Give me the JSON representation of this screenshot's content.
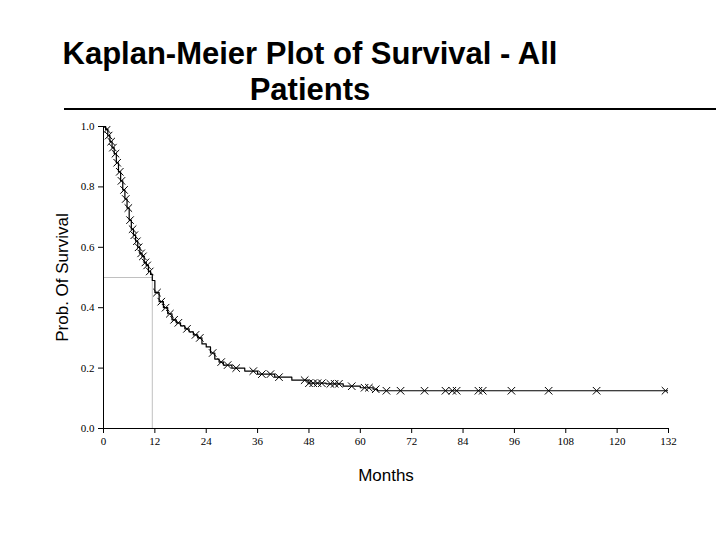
{
  "chart_data": {
    "type": "line",
    "title": "Kaplan-Meier Plot of Survival - All Patients",
    "x_label": "Months",
    "y_label": "Prob. Of Survival",
    "xlim": [
      0,
      132
    ],
    "xticks": [
      0,
      12,
      24,
      36,
      48,
      60,
      72,
      84,
      96,
      108,
      120,
      132
    ],
    "ylim": [
      0,
      1
    ],
    "yticks": [
      {
        "value": 0,
        "label": "0.0"
      },
      {
        "value": 0.2,
        "label": "0.2"
      },
      {
        "value": 0.4,
        "label": "0.4"
      },
      {
        "value": 0.6,
        "label": "0.6"
      },
      {
        "value": 0.8,
        "label": "0.8"
      },
      {
        "value": 1,
        "label": "1.0"
      }
    ],
    "grid": false,
    "series": [
      {
        "type": "line",
        "line_style": "step",
        "color": "#000000",
        "x": [
          0,
          0.5,
          1,
          1.5,
          2,
          2.5,
          3,
          3.5,
          4,
          4.5,
          5,
          5.5,
          6,
          6.5,
          7,
          7.5,
          8,
          8.5,
          9,
          9.5,
          10,
          10.5,
          11,
          11.4,
          12,
          13,
          14,
          15,
          16,
          17,
          18,
          19,
          20,
          21,
          22,
          23,
          24,
          25,
          26,
          27,
          28,
          30,
          33,
          36,
          40,
          44,
          48,
          52,
          56,
          60,
          63,
          64,
          132
        ],
        "values": [
          1,
          0.99,
          0.97,
          0.95,
          0.93,
          0.91,
          0.88,
          0.85,
          0.82,
          0.79,
          0.76,
          0.73,
          0.69,
          0.66,
          0.64,
          0.62,
          0.6,
          0.58,
          0.57,
          0.55,
          0.54,
          0.52,
          0.51,
          0.49,
          0.45,
          0.42,
          0.4,
          0.38,
          0.36,
          0.35,
          0.34,
          0.33,
          0.32,
          0.31,
          0.3,
          0.28,
          0.27,
          0.25,
          0.23,
          0.22,
          0.21,
          0.2,
          0.19,
          0.18,
          0.17,
          0.16,
          0.15,
          0.148,
          0.14,
          0.135,
          0.13,
          0.125,
          0.125
        ]
      },
      {
        "type": "scatter",
        "marker": "x",
        "color": "#000000",
        "x": [
          0.3,
          0.8,
          1.2,
          1.8,
          2.2,
          2.8,
          3.2,
          3.8,
          4.2,
          4.8,
          5.2,
          5.8,
          6.2,
          6.8,
          7.2,
          7.8,
          8.2,
          8.8,
          9.2,
          9.8,
          10.2,
          10.8,
          12.5,
          13.5,
          14.5,
          15.5,
          16.5,
          17.5,
          19.5,
          21.5,
          22.5,
          25.5,
          27.5,
          29,
          31,
          35,
          37,
          39,
          41,
          47,
          48,
          49,
          50,
          51,
          53,
          54,
          55,
          58,
          61,
          62,
          63.6,
          66.1,
          69.4,
          75,
          79.9,
          81.5,
          82.5,
          87.6,
          88.6,
          95.3,
          104,
          115.2,
          131.3
        ],
        "values": [
          1,
          0.99,
          0.97,
          0.95,
          0.93,
          0.91,
          0.88,
          0.85,
          0.82,
          0.79,
          0.76,
          0.73,
          0.69,
          0.66,
          0.64,
          0.62,
          0.6,
          0.58,
          0.57,
          0.55,
          0.54,
          0.52,
          0.45,
          0.42,
          0.4,
          0.38,
          0.36,
          0.35,
          0.33,
          0.31,
          0.3,
          0.25,
          0.22,
          0.21,
          0.2,
          0.19,
          0.18,
          0.18,
          0.17,
          0.16,
          0.15,
          0.15,
          0.15,
          0.15,
          0.148,
          0.148,
          0.148,
          0.14,
          0.135,
          0.135,
          0.13,
          0.125,
          0.125,
          0.125,
          0.125,
          0.125,
          0.125,
          0.125,
          0.125,
          0.125,
          0.125,
          0.125,
          0.125
        ]
      }
    ],
    "median": {
      "x": 11.4,
      "y": 0.5,
      "color": "#c0c0c0"
    }
  }
}
